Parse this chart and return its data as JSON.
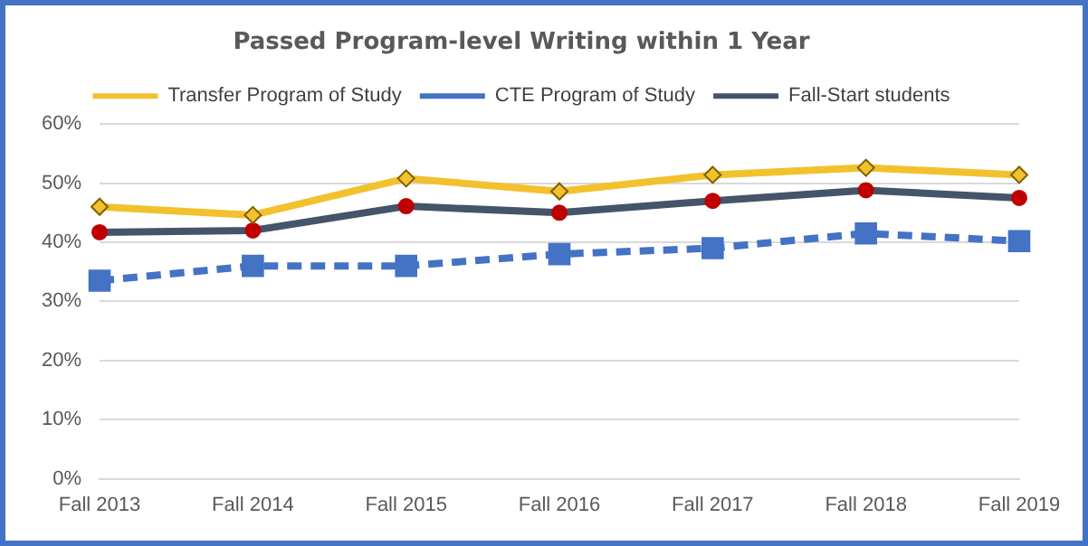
{
  "chart_data": {
    "type": "line",
    "title": "Passed Program-level Writing within 1 Year",
    "categories": [
      "Fall 2013",
      "Fall 2014",
      "Fall 2015",
      "Fall 2016",
      "Fall 2017",
      "Fall 2018",
      "Fall 2019"
    ],
    "series": [
      {
        "name": "Transfer Program of Study",
        "color": "#f2c12e",
        "marker": "diamond",
        "line_style": "solid",
        "values": [
          46,
          44.6,
          50.8,
          48.6,
          51.4,
          52.6,
          51.4
        ]
      },
      {
        "name": "CTE Program of Study",
        "color": "#4472c4",
        "marker": "square",
        "line_style": "dashed",
        "values": [
          33.5,
          36,
          36,
          38,
          39,
          41.5,
          40.2
        ]
      },
      {
        "name": "Fall-Start students",
        "color": "#44546a",
        "marker": "circle",
        "line_style": "solid",
        "values": [
          41.7,
          42,
          46.1,
          45,
          47,
          48.8,
          47.5
        ]
      }
    ],
    "ylim": [
      0,
      60
    ],
    "yticks": [
      {
        "value": 0,
        "label": "0%"
      },
      {
        "value": 10,
        "label": "10%"
      },
      {
        "value": 20,
        "label": "20%"
      },
      {
        "value": 30,
        "label": "30%"
      },
      {
        "value": 40,
        "label": "40%"
      },
      {
        "value": 50,
        "label": "50%"
      },
      {
        "value": 60,
        "label": "60%"
      }
    ],
    "grid": "y",
    "legend": "top"
  }
}
